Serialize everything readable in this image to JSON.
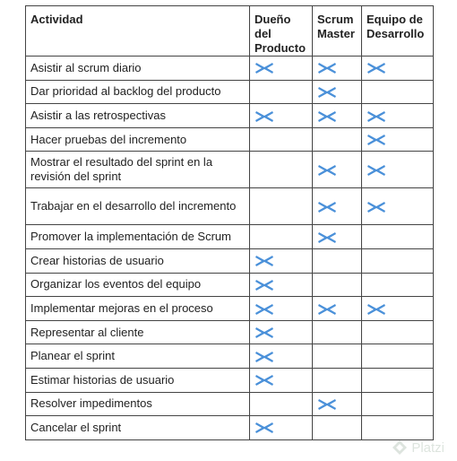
{
  "table": {
    "headers": {
      "activity": "Actividad",
      "product_owner": "Dueño del Producto",
      "scrum_master": "Scrum Master",
      "dev_team": "Equipo de Desarrollo"
    },
    "rows": [
      {
        "activity": "Asistir al scrum diario",
        "po": true,
        "sm": true,
        "dev": true
      },
      {
        "activity": "Dar prioridad al backlog del producto",
        "po": false,
        "sm": true,
        "dev": false
      },
      {
        "activity": "Asistir a las retrospectivas",
        "po": true,
        "sm": true,
        "dev": true
      },
      {
        "activity": "Hacer pruebas del incremento",
        "po": false,
        "sm": false,
        "dev": true
      },
      {
        "activity": "Mostrar el resultado del sprint en la revisión del sprint",
        "po": false,
        "sm": true,
        "dev": true
      },
      {
        "activity": "Trabajar en el desarrollo del incremento",
        "po": false,
        "sm": true,
        "dev": true
      },
      {
        "activity": "Promover la implementación de Scrum",
        "po": false,
        "sm": true,
        "dev": false
      },
      {
        "activity": "Crear historias de usuario",
        "po": true,
        "sm": false,
        "dev": false
      },
      {
        "activity": "Organizar los eventos del equipo",
        "po": true,
        "sm": false,
        "dev": false
      },
      {
        "activity": "Implementar mejoras en el proceso",
        "po": true,
        "sm": true,
        "dev": true
      },
      {
        "activity": "Representar al cliente",
        "po": true,
        "sm": false,
        "dev": false
      },
      {
        "activity": "Planear el sprint",
        "po": true,
        "sm": false,
        "dev": false
      },
      {
        "activity": "Estimar historias de usuario",
        "po": true,
        "sm": false,
        "dev": false
      },
      {
        "activity": "Resolver impedimentos",
        "po": false,
        "sm": true,
        "dev": false
      },
      {
        "activity": "Cancelar el sprint",
        "po": true,
        "sm": false,
        "dev": false
      }
    ]
  },
  "mark_icon": "x-mark-icon",
  "mark_color": "#4a90d9",
  "watermark": {
    "text": "Platzi",
    "icon": "platzi-logo-icon"
  }
}
